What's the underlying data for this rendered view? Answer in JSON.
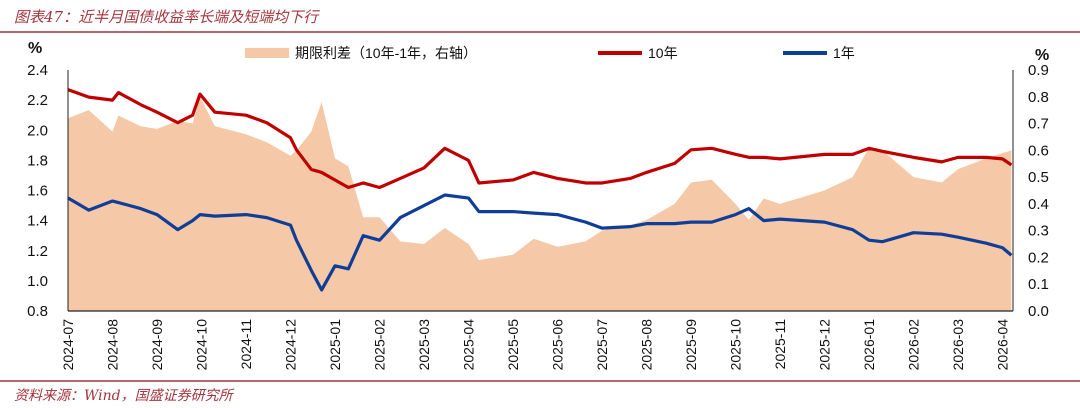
{
  "title": "图表47：近半月国债收益率长端及短端均下行",
  "source": "资料来源：Wind，国盛证券研究所",
  "chart_data": {
    "type": "line",
    "left_axis": {
      "unit": "%",
      "ylim": [
        0.8,
        2.4
      ],
      "ticks": [
        "0.8",
        "1.0",
        "1.2",
        "1.4",
        "1.6",
        "1.8",
        "2.0",
        "2.2",
        "2.4"
      ]
    },
    "right_axis": {
      "unit": "%",
      "ylim": [
        0.0,
        0.9
      ],
      "ticks": [
        "0.0",
        "0.1",
        "0.2",
        "0.3",
        "0.4",
        "0.5",
        "0.6",
        "0.7",
        "0.8",
        "0.9"
      ]
    },
    "x_ticks": [
      "2024-07",
      "2024-08",
      "2024-09",
      "2024-10",
      "2024-11",
      "2024-12",
      "2025-01",
      "2025-02",
      "2025-03",
      "2025-04",
      "2025-05",
      "2025-06",
      "2025-07",
      "2025-08",
      "2025-09",
      "2025-10",
      "2025-11",
      "2025-12",
      "2026-01",
      "2026-02",
      "2026-03",
      "2026-04"
    ],
    "legend_placement": "top",
    "grid": false,
    "x": [
      "2024-07-01",
      "2024-07-15",
      "2024-08-01",
      "2024-08-05",
      "2024-08-20",
      "2024-09-01",
      "2024-09-15",
      "2024-09-25",
      "2024-09-30",
      "2024-10-10",
      "2024-11-01",
      "2024-11-15",
      "2024-12-01",
      "2024-12-05",
      "2024-12-15",
      "2024-12-22",
      "2024-12-31",
      "2025-01-10",
      "2025-01-20",
      "2025-02-01",
      "2025-02-15",
      "2025-03-01",
      "2025-03-15",
      "2025-04-01",
      "2025-04-08",
      "2025-05-01",
      "2025-05-15",
      "2025-06-01",
      "2025-06-20",
      "2025-07-01",
      "2025-07-20",
      "2025-08-01",
      "2025-08-20",
      "2025-09-01",
      "2025-09-15",
      "2025-10-01",
      "2025-10-10",
      "2025-10-20",
      "2025-11-01",
      "2025-12-01",
      "2025-12-20",
      "2026-01-01",
      "2026-01-10",
      "2026-02-01",
      "2026-02-20",
      "2026-03-01",
      "2026-03-20",
      "2026-04-01",
      "2026-04-07"
    ],
    "series": [
      {
        "name": "期限利差（10年-1年，右轴）",
        "type": "area",
        "axis": "right",
        "color": "#f5c8a8",
        "values": [
          0.72,
          0.75,
          0.67,
          0.73,
          0.69,
          0.68,
          0.71,
          0.7,
          0.8,
          0.69,
          0.66,
          0.63,
          0.58,
          0.6,
          0.67,
          0.78,
          0.57,
          0.54,
          0.35,
          0.35,
          0.26,
          0.25,
          0.31,
          0.25,
          0.19,
          0.21,
          0.27,
          0.24,
          0.26,
          0.3,
          0.32,
          0.34,
          0.4,
          0.48,
          0.49,
          0.4,
          0.34,
          0.42,
          0.4,
          0.45,
          0.5,
          0.61,
          0.6,
          0.5,
          0.48,
          0.53,
          0.57,
          0.59,
          0.6
        ]
      },
      {
        "name": "10年",
        "type": "line",
        "axis": "left",
        "color": "#c00000",
        "values": [
          2.27,
          2.22,
          2.2,
          2.25,
          2.17,
          2.12,
          2.05,
          2.1,
          2.24,
          2.12,
          2.1,
          2.05,
          1.95,
          1.87,
          1.74,
          1.72,
          1.67,
          1.62,
          1.65,
          1.62,
          1.68,
          1.75,
          1.88,
          1.8,
          1.65,
          1.67,
          1.72,
          1.68,
          1.65,
          1.65,
          1.68,
          1.72,
          1.78,
          1.87,
          1.88,
          1.84,
          1.82,
          1.82,
          1.81,
          1.84,
          1.84,
          1.88,
          1.86,
          1.82,
          1.79,
          1.82,
          1.82,
          1.81,
          1.77
        ]
      },
      {
        "name": "1年",
        "type": "line",
        "axis": "left",
        "color": "#0f3e99",
        "values": [
          1.55,
          1.47,
          1.53,
          1.52,
          1.48,
          1.44,
          1.34,
          1.4,
          1.44,
          1.43,
          1.44,
          1.42,
          1.37,
          1.27,
          1.07,
          0.94,
          1.1,
          1.08,
          1.3,
          1.27,
          1.42,
          1.5,
          1.57,
          1.55,
          1.46,
          1.46,
          1.45,
          1.44,
          1.39,
          1.35,
          1.36,
          1.38,
          1.38,
          1.39,
          1.39,
          1.44,
          1.48,
          1.4,
          1.41,
          1.39,
          1.34,
          1.27,
          1.26,
          1.32,
          1.31,
          1.29,
          1.25,
          1.22,
          1.17
        ]
      }
    ]
  }
}
